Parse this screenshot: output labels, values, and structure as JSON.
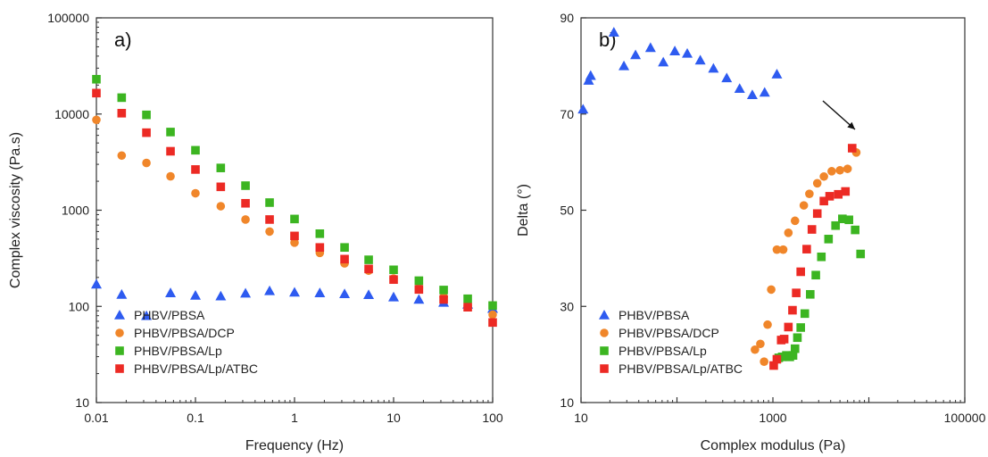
{
  "chart_data": [
    {
      "type": "scatter",
      "panel_label": "a)",
      "xlabel": "Frequency (Hz)",
      "ylabel": "Complex viscosity (Pa.s)",
      "xscale": "log",
      "yscale": "log",
      "xlim": [
        0.01,
        100
      ],
      "ylim": [
        10,
        100000
      ],
      "x_tick_labels": [
        "0.01",
        "0.1",
        "1",
        "10",
        "100"
      ],
      "y_tick_labels": [
        "10",
        "100",
        "1000",
        "10000",
        "100000"
      ],
      "grid": false,
      "legend_position": "bottom-left",
      "series": [
        {
          "name": "PHBV/PBSA",
          "marker": "triangle",
          "color": "#2e5bf0",
          "points": [
            [
              0.01,
              170
            ],
            [
              0.018,
              133
            ],
            [
              0.032,
              80
            ],
            [
              0.056,
              138
            ],
            [
              0.1,
              130
            ],
            [
              0.18,
              128
            ],
            [
              0.32,
              137
            ],
            [
              0.56,
              145
            ],
            [
              1,
              140
            ],
            [
              1.8,
              138
            ],
            [
              3.2,
              135
            ],
            [
              5.6,
              132
            ],
            [
              10,
              125
            ],
            [
              18,
              118
            ],
            [
              32,
              110
            ],
            [
              56,
              105
            ],
            [
              100,
              95
            ]
          ]
        },
        {
          "name": "PHBV/PBSA/DCP",
          "marker": "circle",
          "color": "#f0862a",
          "points": [
            [
              0.01,
              8700
            ],
            [
              0.018,
              3700
            ],
            [
              0.032,
              3100
            ],
            [
              0.056,
              2250
            ],
            [
              0.1,
              1500
            ],
            [
              0.18,
              1100
            ],
            [
              0.32,
              800
            ],
            [
              0.56,
              600
            ],
            [
              1,
              460
            ],
            [
              1.8,
              360
            ],
            [
              3.2,
              280
            ],
            [
              5.6,
              235
            ],
            [
              10,
              195
            ],
            [
              18,
              155
            ],
            [
              32,
              125
            ],
            [
              56,
              102
            ],
            [
              100,
              82
            ]
          ]
        },
        {
          "name": "PHBV/PBSA/Lp",
          "marker": "square",
          "color": "#3cb521",
          "points": [
            [
              0.01,
              23000
            ],
            [
              0.018,
              14800
            ],
            [
              0.032,
              9800
            ],
            [
              0.056,
              6500
            ],
            [
              0.1,
              4200
            ],
            [
              0.18,
              2750
            ],
            [
              0.32,
              1800
            ],
            [
              0.56,
              1200
            ],
            [
              1,
              810
            ],
            [
              1.8,
              570
            ],
            [
              3.2,
              410
            ],
            [
              5.6,
              305
            ],
            [
              10,
              240
            ],
            [
              18,
              185
            ],
            [
              32,
              148
            ],
            [
              56,
              120
            ],
            [
              100,
              102
            ]
          ]
        },
        {
          "name": "PHBV/PBSA/Lp/ATBC",
          "marker": "square",
          "color": "#ec2a24",
          "points": [
            [
              0.01,
              16500
            ],
            [
              0.018,
              10200
            ],
            [
              0.032,
              6400
            ],
            [
              0.056,
              4100
            ],
            [
              0.1,
              2650
            ],
            [
              0.18,
              1750
            ],
            [
              0.32,
              1180
            ],
            [
              0.56,
              800
            ],
            [
              1,
              540
            ],
            [
              1.8,
              410
            ],
            [
              3.2,
              310
            ],
            [
              5.6,
              245
            ],
            [
              10,
              190
            ],
            [
              18,
              150
            ],
            [
              32,
              118
            ],
            [
              56,
              98
            ],
            [
              100,
              68
            ]
          ]
        }
      ]
    },
    {
      "type": "scatter",
      "panel_label": "b)",
      "xlabel": "Complex modulus (Pa)",
      "ylabel": "Delta (°)",
      "xscale": "log",
      "yscale": "linear",
      "xlim": [
        10,
        100000
      ],
      "ylim": [
        10,
        90
      ],
      "x_tick_labels": [
        "10",
        "1000",
        "100000"
      ],
      "y_tick_labels": [
        "10",
        "30",
        "50",
        "70",
        "90"
      ],
      "grid": false,
      "legend_position": "bottom-left",
      "annotation": "arrow",
      "series": [
        {
          "name": "PHBV/PBSA",
          "marker": "triangle",
          "color": "#2e5bf0",
          "points": [
            [
              10.5,
              71
            ],
            [
              12,
              77
            ],
            [
              12.6,
              78
            ],
            [
              22,
              87
            ],
            [
              28,
              80
            ],
            [
              37,
              82.3
            ],
            [
              53,
              83.8
            ],
            [
              72,
              80.8
            ],
            [
              95,
              83.1
            ],
            [
              128,
              82.6
            ],
            [
              175,
              81.2
            ],
            [
              240,
              79.5
            ],
            [
              330,
              77.5
            ],
            [
              450,
              75.3
            ],
            [
              610,
              74
            ],
            [
              820,
              74.5
            ],
            [
              1100,
              78.3
            ]
          ]
        },
        {
          "name": "PHBV/PBSA/DCP",
          "marker": "circle",
          "color": "#f0862a",
          "points": [
            [
              650,
              21
            ],
            [
              740,
              22.2
            ],
            [
              810,
              18.5
            ],
            [
              880,
              26.2
            ],
            [
              960,
              33.5
            ],
            [
              1100,
              41.8
            ],
            [
              1280,
              41.8
            ],
            [
              1450,
              45.3
            ],
            [
              1700,
              47.8
            ],
            [
              2100,
              51
            ],
            [
              2400,
              53.4
            ],
            [
              2900,
              55.6
            ],
            [
              3400,
              57
            ],
            [
              4100,
              58.1
            ],
            [
              5000,
              58.3
            ],
            [
              6000,
              58.6
            ],
            [
              7400,
              62
            ]
          ]
        },
        {
          "name": "PHBV/PBSA/Lp",
          "marker": "square",
          "color": "#3cb521",
          "points": [
            [
              1150,
              19.3
            ],
            [
              1250,
              19.5
            ],
            [
              1380,
              19.8
            ],
            [
              1500,
              19.5
            ],
            [
              1620,
              19.8
            ],
            [
              1700,
              21.2
            ],
            [
              1800,
              23.5
            ],
            [
              1950,
              25.6
            ],
            [
              2150,
              28.5
            ],
            [
              2450,
              32.5
            ],
            [
              2800,
              36.5
            ],
            [
              3200,
              40.3
            ],
            [
              3800,
              44
            ],
            [
              4500,
              46.8
            ],
            [
              5300,
              48.2
            ],
            [
              6200,
              48
            ],
            [
              7200,
              45.9
            ],
            [
              8200,
              40.9
            ]
          ]
        },
        {
          "name": "PHBV/PBSA/Lp/ATBC",
          "marker": "square",
          "color": "#ec2a24",
          "points": [
            [
              1020,
              17.7
            ],
            [
              1100,
              19
            ],
            [
              1220,
              23
            ],
            [
              1310,
              23.2
            ],
            [
              1450,
              25.7
            ],
            [
              1600,
              29.2
            ],
            [
              1750,
              32.8
            ],
            [
              1950,
              37.2
            ],
            [
              2250,
              41.9
            ],
            [
              2550,
              46
            ],
            [
              2900,
              49.3
            ],
            [
              3400,
              51.9
            ],
            [
              3900,
              52.9
            ],
            [
              4800,
              53.3
            ],
            [
              5700,
              53.9
            ],
            [
              6700,
              62.9
            ]
          ]
        }
      ]
    }
  ]
}
